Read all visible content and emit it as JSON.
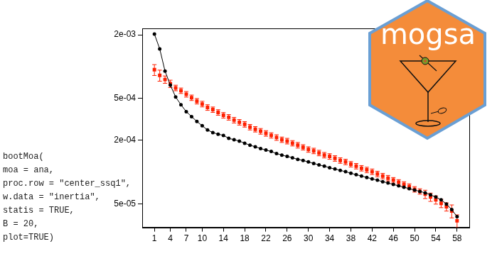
{
  "chart_data": {
    "type": "line",
    "annotations": [
      "bootMoa(",
      "moa = ana,",
      "proc.row = \"center_ssq1\",",
      "w.data = \"inertia\",",
      "statis = TRUE,",
      "B = 20,",
      "plot=TRUE)"
    ],
    "x": [
      1,
      2,
      3,
      4,
      5,
      6,
      7,
      8,
      9,
      10,
      11,
      12,
      13,
      14,
      15,
      16,
      17,
      18,
      19,
      20,
      21,
      22,
      23,
      24,
      25,
      26,
      27,
      28,
      29,
      30,
      31,
      32,
      33,
      34,
      35,
      36,
      37,
      38,
      39,
      40,
      41,
      42,
      43,
      44,
      45,
      46,
      47,
      48,
      49,
      50,
      51,
      52,
      53,
      54,
      55,
      56,
      57,
      58
    ],
    "series": [
      {
        "type": "line",
        "color": "#000000",
        "marker": "circle",
        "values": [
          0.00203,
          0.00147,
          0.000905,
          0.000667,
          0.000515,
          0.000435,
          0.000374,
          0.000336,
          0.000302,
          0.000275,
          0.000251,
          0.000237,
          0.000229,
          0.000223,
          0.000209,
          0.000203,
          0.000197,
          0.000188,
          0.00018,
          0.000174,
          0.000167,
          0.000162,
          0.000157,
          0.00015,
          0.000145,
          0.000141,
          0.000137,
          0.000132,
          0.000129,
          0.000125,
          0.000121,
          0.000117,
          0.000114,
          0.00011,
          0.000107,
          0.000104,
          0.000101,
          9.77e-05,
          9.47e-05,
          9.19e-05,
          8.91e-05,
          8.65e-05,
          8.39e-05,
          8.13e-05,
          7.89e-05,
          7.65e-05,
          7.42e-05,
          7.2e-05,
          6.98e-05,
          6.77e-05,
          6.57e-05,
          6.37e-05,
          6.09e-05,
          5.81e-05,
          5.47e-05,
          4.99e-05,
          4.42e-05,
          3.79e-05
        ]
      },
      {
        "type": "scatter",
        "color": "#ff2000",
        "marker": "square",
        "values": [
          0.000933,
          0.000826,
          0.000754,
          0.000688,
          0.000628,
          0.000591,
          0.000547,
          0.000507,
          0.00047,
          0.000442,
          0.00041,
          0.000391,
          0.000368,
          0.000346,
          0.000331,
          0.000311,
          0.000297,
          0.000284,
          0.000267,
          0.000255,
          0.000244,
          0.000233,
          0.000223,
          0.000213,
          0.000203,
          0.000197,
          0.000188,
          0.00018,
          0.000172,
          0.000164,
          0.000159,
          0.000152,
          0.000145,
          0.000141,
          0.000135,
          0.000129,
          0.000125,
          0.000119,
          0.000114,
          0.000109,
          0.000105,
          0.000101,
          9.62e-05,
          9.19e-05,
          8.78e-05,
          8.39e-05,
          8.01e-05,
          7.65e-05,
          7.31e-05,
          6.88e-05,
          6.57e-05,
          6.18e-05,
          5.81e-05,
          5.47e-05,
          5.07e-05,
          4.7e-05,
          4.29e-05,
          3.46e-05
        ],
        "errors": [
          0.00011,
          9.9e-05,
          6e-05,
          5.5e-05,
          3.8e-05,
          3.5e-05,
          3.3e-05,
          3e-05,
          2.8e-05,
          2.7e-05,
          2.5e-05,
          2.3e-05,
          2.2e-05,
          2.1e-05,
          2e-05,
          1.9e-05,
          1.8e-05,
          1.7e-05,
          1.6e-05,
          1.5e-05,
          1.5e-05,
          1.4e-05,
          1.3e-05,
          1.3e-05,
          1.2e-05,
          1.2e-05,
          1.1e-05,
          1.1e-05,
          1e-05,
          9.8e-06,
          9.5e-06,
          9.1e-06,
          8.7e-06,
          8.5e-06,
          8.1e-06,
          7.7e-06,
          7.5e-06,
          7.1e-06,
          6.8e-06,
          6.5e-06,
          6.3e-06,
          6.1e-06,
          5.8e-06,
          5.5e-06,
          5.3e-06,
          5e-06,
          4.8e-06,
          4.6e-06,
          4.4e-06,
          4.1e-06,
          3.9e-06,
          5.6e-06,
          5.2e-06,
          4.9e-06,
          4.6e-06,
          4.2e-06,
          6e-06,
          4.8e-06
        ]
      }
    ],
    "xlim": [
      -1.3,
      60.3
    ],
    "xticks": [
      1,
      4,
      7,
      10,
      14,
      18,
      22,
      26,
      30,
      34,
      38,
      42,
      46,
      50,
      54,
      58
    ],
    "ylim": [
      3e-05,
      0.0023
    ],
    "yticks": [
      {
        "value": 5e-05,
        "label": "5e-05"
      },
      {
        "value": 0.0002,
        "label": "2e-04"
      },
      {
        "value": 0.0005,
        "label": "5e-04"
      },
      {
        "value": 0.002,
        "label": "2e-03"
      }
    ],
    "log": "y",
    "grid": false
  },
  "logo": {
    "text": "mogsa"
  }
}
